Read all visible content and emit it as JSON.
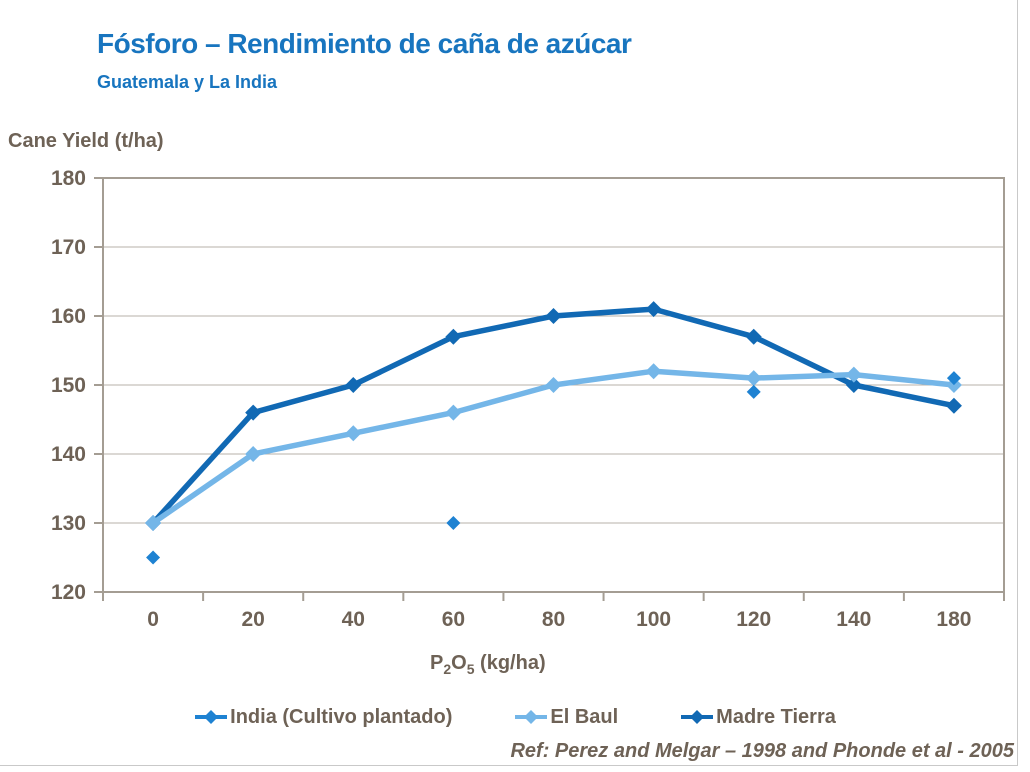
{
  "title": "Fósforo – Rendimiento de caña de azúcar",
  "subtitle": "Guatemala y La India",
  "y_axis_title": "Cane Yield (t/ha)",
  "x_axis_title": {
    "p": "P",
    "sub2": "2",
    "o": "O",
    "sub5": "5",
    "units": " (kg/ha)"
  },
  "ref_text": "Ref:  Perez and Melgar – 1998 and Phonde et al - 2005",
  "colors": {
    "title_blue": "#1875BF",
    "text_brown": "#6E6256",
    "gridline": "#B7B1A8",
    "axis_line": "#A49D93",
    "india": "#1E82D2",
    "el_baul": "#74B6E8",
    "madre_tierra": "#1169B4"
  },
  "legend": {
    "items": [
      {
        "label": "India (Cultivo plantado)",
        "color_key": "india"
      },
      {
        "label": "El Baul",
        "color_key": "el_baul"
      },
      {
        "label": "Madre Tierra",
        "color_key": "madre_tierra"
      }
    ]
  },
  "chart_data": {
    "type": "line",
    "title": "Fósforo – Rendimiento de caña de azúcar",
    "subtitle": "Guatemala y La India",
    "xlabel": "P2O5 (kg/ha)",
    "ylabel": "Cane Yield (t/ha)",
    "x_axis_type": "category",
    "categories": [
      "0",
      "20",
      "40",
      "60",
      "80",
      "100",
      "120",
      "140",
      "180"
    ],
    "ylim": [
      120,
      180
    ],
    "y_ticks": [
      120,
      130,
      140,
      150,
      160,
      170,
      180
    ],
    "grid": true,
    "legend_position": "bottom",
    "series": [
      {
        "name": "Madre Tierra",
        "color_key": "madre_tierra",
        "line": true,
        "values": [
          130,
          146,
          150,
          157,
          160,
          161,
          157,
          150,
          147
        ]
      },
      {
        "name": "El Baul",
        "color_key": "el_baul",
        "line": true,
        "values": [
          130,
          140,
          143,
          146,
          150,
          152,
          151,
          151.5,
          150
        ]
      },
      {
        "name": "India (Cultivo plantado)",
        "color_key": "india",
        "line": false,
        "values": [
          125,
          null,
          null,
          130,
          null,
          null,
          149,
          null,
          151
        ]
      }
    ]
  }
}
